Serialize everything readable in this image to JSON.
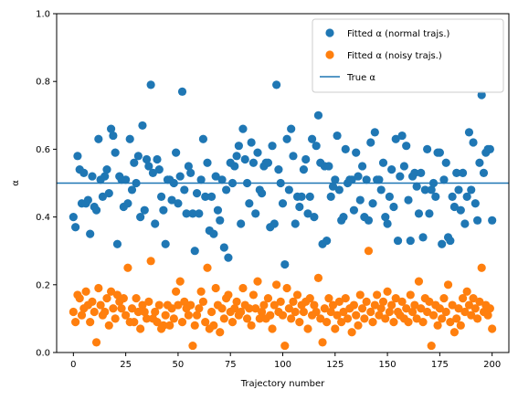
{
  "chart_data": {
    "type": "scatter",
    "xlabel": "Trajectory number",
    "ylabel": "α",
    "xlim": [
      -8,
      208
    ],
    "ylim": [
      0,
      1
    ],
    "xticks": [
      0,
      25,
      50,
      75,
      100,
      125,
      150,
      175,
      200
    ],
    "yticks": [
      0.0,
      0.2,
      0.4,
      0.6,
      0.8,
      1.0
    ],
    "ytick_labels": [
      "0.0",
      "0.2",
      "0.4",
      "0.6",
      "0.8",
      "1.0"
    ],
    "grid": false,
    "legend_position": "top-right",
    "true_alpha": 0.5,
    "series": [
      {
        "name": "Fitted α (normal trajs.)",
        "color": "#1f77b4",
        "marker": "circle",
        "y": [
          0.4,
          0.37,
          0.58,
          0.54,
          0.44,
          0.53,
          0.44,
          0.45,
          0.35,
          0.52,
          0.43,
          0.42,
          0.63,
          0.51,
          0.46,
          0.52,
          0.54,
          0.47,
          0.66,
          0.64,
          0.59,
          0.32,
          0.52,
          0.51,
          0.43,
          0.51,
          0.44,
          0.63,
          0.48,
          0.56,
          0.5,
          0.58,
          0.4,
          0.67,
          0.42,
          0.57,
          0.55,
          0.79,
          0.53,
          0.38,
          0.57,
          0.54,
          0.46,
          0.42,
          0.32,
          0.51,
          0.51,
          0.45,
          0.5,
          0.59,
          0.44,
          0.52,
          0.77,
          0.48,
          0.41,
          0.55,
          0.53,
          0.41,
          0.3,
          0.47,
          0.41,
          0.51,
          0.63,
          0.46,
          0.56,
          0.36,
          0.46,
          0.35,
          0.52,
          0.42,
          0.39,
          0.51,
          0.31,
          0.48,
          0.28,
          0.56,
          0.5,
          0.55,
          0.58,
          0.61,
          0.38,
          0.66,
          0.57,
          0.5,
          0.44,
          0.62,
          0.56,
          0.41,
          0.59,
          0.48,
          0.47,
          0.55,
          0.56,
          0.56,
          0.37,
          0.61,
          0.38,
          0.79,
          0.54,
          0.5,
          0.44,
          0.26,
          0.63,
          0.48,
          0.66,
          0.58,
          0.38,
          0.46,
          0.43,
          0.46,
          0.54,
          0.57,
          0.41,
          0.46,
          0.63,
          0.4,
          0.61,
          0.7,
          0.56,
          0.32,
          0.55,
          0.33,
          0.55,
          0.46,
          0.49,
          0.51,
          0.64,
          0.48,
          0.39,
          0.4,
          0.6,
          0.5,
          0.51,
          0.51,
          0.42,
          0.59,
          0.52,
          0.45,
          0.55,
          0.4,
          0.51,
          0.39,
          0.62,
          0.44,
          0.65,
          0.51,
          0.51,
          0.48,
          0.56,
          0.4,
          0.38,
          0.46,
          0.54,
          0.43,
          0.63,
          0.33,
          0.52,
          0.64,
          0.55,
          0.61,
          0.45,
          0.33,
          0.52,
          0.53,
          0.49,
          0.41,
          0.53,
          0.34,
          0.48,
          0.6,
          0.41,
          0.48,
          0.5,
          0.46,
          0.59,
          0.59,
          0.32,
          0.51,
          0.56,
          0.34,
          0.33,
          0.46,
          0.43,
          0.53,
          0.48,
          0.42,
          0.53,
          0.38,
          0.46,
          0.65,
          0.48,
          0.62,
          0.44,
          0.39,
          0.56,
          0.76,
          0.53,
          0.59,
          0.6,
          0.6,
          0.39
        ]
      },
      {
        "name": "Fitted α (noisy trajs.)",
        "color": "#ff7f0e",
        "marker": "circle",
        "y": [
          0.12,
          0.09,
          0.17,
          0.16,
          0.11,
          0.13,
          0.18,
          0.14,
          0.09,
          0.15,
          0.12,
          0.03,
          0.19,
          0.14,
          0.11,
          0.12,
          0.16,
          0.08,
          0.18,
          0.13,
          0.1,
          0.17,
          0.15,
          0.13,
          0.16,
          0.11,
          0.25,
          0.09,
          0.13,
          0.09,
          0.16,
          0.12,
          0.07,
          0.14,
          0.12,
          0.1,
          0.15,
          0.27,
          0.1,
          0.12,
          0.09,
          0.14,
          0.07,
          0.08,
          0.11,
          0.14,
          0.08,
          0.13,
          0.1,
          0.18,
          0.14,
          0.21,
          0.09,
          0.15,
          0.13,
          0.11,
          0.14,
          0.02,
          0.08,
          0.11,
          0.13,
          0.18,
          0.15,
          0.09,
          0.25,
          0.07,
          0.12,
          0.08,
          0.19,
          0.14,
          0.06,
          0.13,
          0.1,
          0.16,
          0.17,
          0.12,
          0.09,
          0.13,
          0.15,
          0.11,
          0.12,
          0.19,
          0.14,
          0.1,
          0.13,
          0.08,
          0.17,
          0.13,
          0.21,
          0.1,
          0.12,
          0.14,
          0.1,
          0.16,
          0.11,
          0.07,
          0.14,
          0.2,
          0.12,
          0.15,
          0.11,
          0.02,
          0.19,
          0.13,
          0.1,
          0.15,
          0.12,
          0.17,
          0.09,
          0.14,
          0.12,
          0.15,
          0.07,
          0.16,
          0.11,
          0.14,
          0.12,
          0.22,
          0.1,
          0.03,
          0.13,
          0.09,
          0.16,
          0.12,
          0.14,
          0.07,
          0.11,
          0.15,
          0.09,
          0.12,
          0.16,
          0.1,
          0.13,
          0.06,
          0.14,
          0.11,
          0.08,
          0.17,
          0.13,
          0.1,
          0.15,
          0.3,
          0.12,
          0.09,
          0.14,
          0.17,
          0.11,
          0.13,
          0.15,
          0.1,
          0.18,
          0.12,
          0.14,
          0.09,
          0.16,
          0.12,
          0.11,
          0.15,
          0.1,
          0.13,
          0.09,
          0.17,
          0.12,
          0.14,
          0.1,
          0.21,
          0.13,
          0.09,
          0.16,
          0.12,
          0.15,
          0.02,
          0.11,
          0.14,
          0.08,
          0.13,
          0.1,
          0.16,
          0.12,
          0.2,
          0.09,
          0.14,
          0.06,
          0.1,
          0.13,
          0.08,
          0.16,
          0.12,
          0.18,
          0.14,
          0.11,
          0.16,
          0.13,
          0.1,
          0.15,
          0.25,
          0.12,
          0.14,
          0.11,
          0.13,
          0.07
        ]
      }
    ],
    "lines": [
      {
        "name": "True α",
        "color": "#1f77b4",
        "orientation": "horizontal",
        "y": 0.5
      }
    ],
    "legend": [
      {
        "label": "Fitted α (normal trajs.)",
        "color": "#1f77b4",
        "kind": "marker"
      },
      {
        "label": "Fitted α (noisy trajs.)",
        "color": "#ff7f0e",
        "kind": "marker"
      },
      {
        "label": "True α",
        "color": "#1f77b4",
        "kind": "line"
      }
    ]
  }
}
